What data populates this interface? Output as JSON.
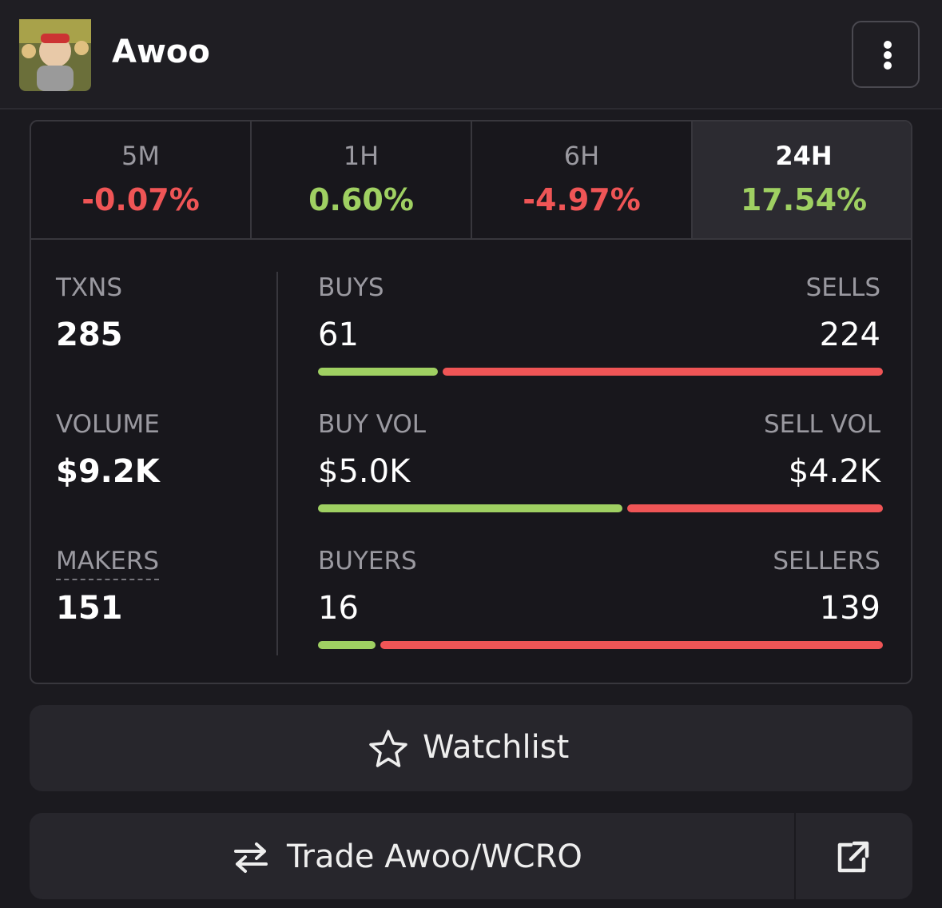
{
  "header": {
    "title": "Awoo"
  },
  "periods": [
    {
      "label": "5M",
      "change": {
        "value": -0.07,
        "label": "-0.07%"
      },
      "active": false
    },
    {
      "label": "1H",
      "change": {
        "value": 0.6,
        "label": "0.60%"
      },
      "active": false
    },
    {
      "label": "6H",
      "change": {
        "value": -4.97,
        "label": "-4.97%"
      },
      "active": false
    },
    {
      "label": "24H",
      "change": {
        "value": 17.54,
        "label": "17.54%"
      },
      "active": true
    }
  ],
  "stats": [
    {
      "label": "TXNS",
      "total": 285,
      "left_label": "BUYS",
      "left": 61,
      "right_label": "SELLS",
      "right": 224
    },
    {
      "label": "VOLUME",
      "total": {
        "value": 9200,
        "label": "$9.2K"
      },
      "left_label": "BUY VOL",
      "left": {
        "value": 5000,
        "label": "$5.0K"
      },
      "right_label": "SELL VOL",
      "right": {
        "value": 4200,
        "label": "$4.2K"
      }
    },
    {
      "label": "MAKERS",
      "total": 151,
      "left_label": "BUYERS",
      "left": 16,
      "right_label": "SELLERS",
      "right": 139
    }
  ],
  "actions": {
    "watchlist": "Watchlist",
    "trade": "Trade Awoo/WCRO"
  }
}
